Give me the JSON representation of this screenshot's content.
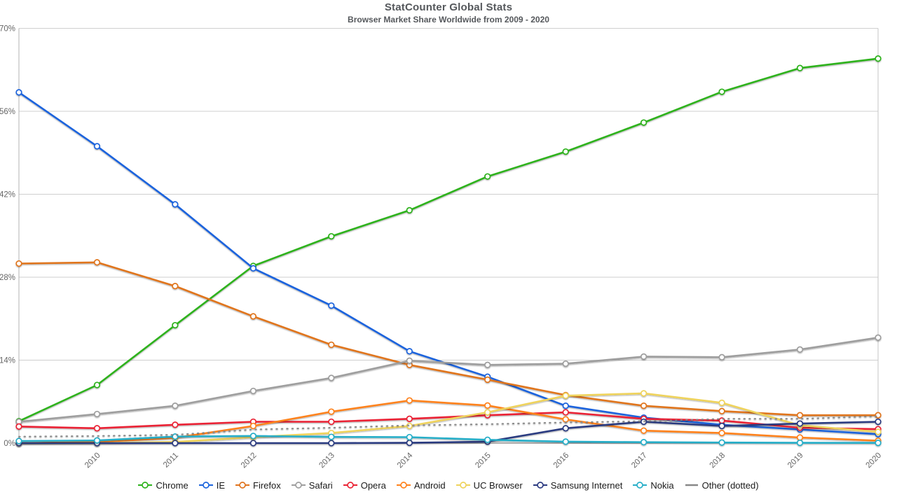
{
  "header": {
    "title": "StatCounter Global Stats",
    "subtitle": "Browser Market Share Worldwide from 2009 - 2020"
  },
  "chart_data": {
    "type": "line",
    "x": [
      2009,
      2010,
      2011,
      2012,
      2013,
      2014,
      2015,
      2016,
      2017,
      2018,
      2019,
      2020
    ],
    "x_tick_labels": [
      "2010",
      "2011",
      "2012",
      "2013",
      "2014",
      "2015",
      "2016",
      "2017",
      "2018",
      "2019",
      "2020"
    ],
    "y_ticks": [
      0,
      14,
      28,
      42,
      56,
      70
    ],
    "y_tick_labels": [
      "0%",
      "14%",
      "28%",
      "42%",
      "56%",
      "70%"
    ],
    "ylim": [
      0,
      70
    ],
    "grid": "horizontal",
    "legend_position": "bottom",
    "series": [
      {
        "name": "Chrome",
        "color": "#2db21c",
        "style": "solid",
        "markers": true,
        "values": [
          3.7,
          9.8,
          19.9,
          29.9,
          34.9,
          39.3,
          45.0,
          49.2,
          54.1,
          59.3,
          63.3,
          64.9
        ]
      },
      {
        "name": "IE",
        "color": "#1b64dd",
        "style": "solid",
        "markers": true,
        "values": [
          59.2,
          50.1,
          40.3,
          29.5,
          23.2,
          15.5,
          11.2,
          6.3,
          4.3,
          3.1,
          2.3,
          1.5
        ]
      },
      {
        "name": "Firefox",
        "color": "#e0741e",
        "style": "solid",
        "markers": true,
        "values": [
          30.3,
          30.5,
          26.5,
          21.4,
          16.6,
          13.2,
          10.7,
          8.1,
          6.3,
          5.4,
          4.7,
          4.7
        ]
      },
      {
        "name": "Safari",
        "color": "#9e9e9e",
        "style": "solid",
        "markers": true,
        "values": [
          3.6,
          4.9,
          6.3,
          8.8,
          11.0,
          13.9,
          13.2,
          13.4,
          14.6,
          14.5,
          15.8,
          17.8
        ]
      },
      {
        "name": "Opera",
        "color": "#ea2334",
        "style": "solid",
        "markers": true,
        "values": [
          2.8,
          2.5,
          3.1,
          3.6,
          3.6,
          4.1,
          4.7,
          5.2,
          4.1,
          3.8,
          2.6,
          2.35
        ]
      },
      {
        "name": "Android",
        "color": "#ff821c",
        "style": "solid",
        "markers": true,
        "values": [
          0.0,
          0.2,
          0.9,
          2.9,
          5.3,
          7.2,
          6.35,
          4.0,
          2.1,
          1.7,
          0.95,
          0.4
        ]
      },
      {
        "name": "UC Browser",
        "color": "#efd35c",
        "style": "solid",
        "markers": true,
        "values": [
          0.0,
          0.0,
          0.2,
          1.0,
          1.7,
          2.9,
          5.2,
          8.0,
          8.4,
          6.8,
          3.0,
          1.9
        ]
      },
      {
        "name": "Samsung Internet",
        "color": "#2b3a80",
        "style": "solid",
        "markers": true,
        "values": [
          0.0,
          0.0,
          0.0,
          0.0,
          0.0,
          0.05,
          0.25,
          2.5,
          3.6,
          2.9,
          3.3,
          3.6
        ]
      },
      {
        "name": "Nokia",
        "color": "#27aec8",
        "style": "solid",
        "markers": true,
        "values": [
          0.35,
          0.45,
          1.1,
          1.2,
          1.05,
          1.0,
          0.55,
          0.25,
          0.15,
          0.1,
          0.05,
          0.03
        ]
      },
      {
        "name": "Other (dotted)",
        "color": "#888888",
        "style": "dotted",
        "markers": false,
        "values": [
          1.1,
          1.2,
          1.4,
          2.3,
          2.6,
          3.0,
          3.2,
          3.5,
          3.7,
          4.1,
          4.1,
          4.55
        ]
      }
    ]
  }
}
